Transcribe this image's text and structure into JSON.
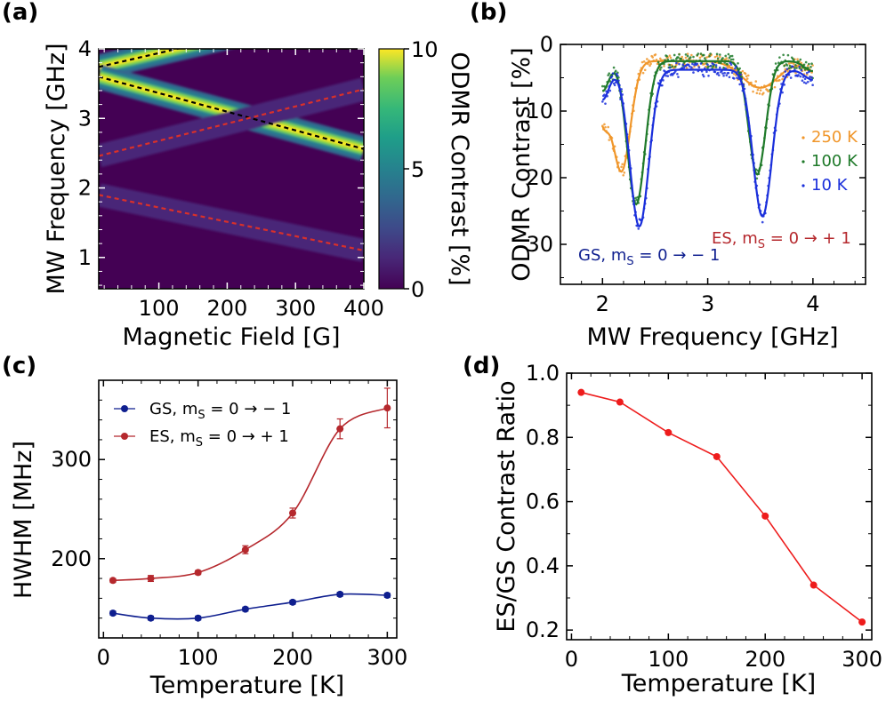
{
  "chart_data": [
    {
      "panel": "(a)",
      "type": "heatmap",
      "xlabel": "Magnetic Field [G]",
      "ylabel": "MW Frequency [GHz]",
      "xlim": [
        12,
        400
      ],
      "ylim": [
        0.55,
        4.0
      ],
      "xticks": [
        100,
        200,
        300,
        400
      ],
      "yticks": [
        1,
        2,
        3,
        4
      ],
      "colorbar": {
        "label": "ODMR Contrast [%]",
        "range": [
          0,
          10
        ],
        "ticks": [
          0,
          5,
          10
        ],
        "colormap": "viridis"
      },
      "branches": [
        {
          "name": "",
          "x": [
            12,
            400
          ],
          "y": [
            3.74,
            4.62
          ],
          "peak": 10,
          "fit_style": "dashed",
          "fit_color": "#000000"
        },
        {
          "name": "",
          "x": [
            12,
            400
          ],
          "y": [
            3.6,
            2.56
          ],
          "peak": 10,
          "fit_style": "dashed",
          "fit_color": "#000000"
        },
        {
          "name": "",
          "x": [
            12,
            400
          ],
          "y": [
            2.46,
            3.42
          ],
          "peak": 2.6,
          "fit_style": "dashed",
          "fit_color": "#d9302a"
        },
        {
          "name": "",
          "x": [
            12,
            400
          ],
          "y": [
            1.9,
            1.1
          ],
          "peak": 2.6,
          "fit_style": "dashed",
          "fit_color": "#d9302a"
        }
      ]
    },
    {
      "panel": "(b)",
      "type": "line",
      "xlabel": "MW Frequency [GHz]",
      "ylabel": "ODMR Contrast [%]",
      "xlim": [
        1.6,
        4.5
      ],
      "ylim": [
        0,
        36
      ],
      "y_inverted": true,
      "xticks": [
        2,
        3,
        4
      ],
      "yticks": [
        0,
        10,
        20,
        30
      ],
      "series": [
        {
          "name": "250 K",
          "color": "#f0962a",
          "base": 2.5,
          "dips": [
            [
              2.18,
              16.5,
              0.085
            ],
            [
              3.5,
              4.0,
              0.17
            ]
          ],
          "edge_min": 8
        },
        {
          "name": "100 K",
          "color": "#1f7a2a",
          "base": 2.5,
          "dips": [
            [
              2.32,
              21.5,
              0.085
            ],
            [
              3.47,
              17.0,
              0.08
            ]
          ],
          "edge_min": 4.5
        },
        {
          "name": "10 K",
          "color": "#1a2fdb",
          "base": 3.8,
          "dips": [
            [
              2.35,
              23.5,
              0.09
            ],
            [
              3.52,
              22.0,
              0.09
            ]
          ],
          "edge_min": 4.5
        }
      ],
      "annotations": [
        {
          "text": "ES, m",
          "sub": "S",
          "rest": " = 0 → + 1",
          "color": "#b5282d"
        },
        {
          "text": "GS, m",
          "sub": "S",
          "rest": " = 0 → − 1",
          "color": "#0f1f8f"
        }
      ]
    },
    {
      "panel": "(c)",
      "type": "line",
      "xlabel": "Temperature [K]",
      "ylabel": "HWHM [MHz]",
      "xlim": [
        -5,
        310
      ],
      "ylim": [
        120,
        380
      ],
      "xticks": [
        0,
        100,
        200,
        300
      ],
      "yticks": [
        200,
        300
      ],
      "series": [
        {
          "name": "GS, m",
          "sub": "S",
          "rest": " = 0 → − 1",
          "color": "#0f1f8f",
          "x": [
            10,
            50,
            100,
            150,
            200,
            250,
            300
          ],
          "y": [
            145,
            140,
            140,
            149,
            156,
            164,
            163
          ],
          "err": [
            2,
            2,
            2,
            2,
            2,
            2,
            2
          ]
        },
        {
          "name": "ES, m",
          "sub": "S",
          "rest": " = 0 → + 1",
          "color": "#b5282d",
          "x": [
            10,
            50,
            100,
            150,
            200,
            250,
            300
          ],
          "y": [
            178,
            180,
            186,
            209,
            246,
            331,
            352
          ],
          "err": [
            2,
            3,
            2,
            4,
            5,
            10,
            20
          ]
        }
      ]
    },
    {
      "panel": "(d)",
      "type": "line",
      "xlabel": "Temperature [K]",
      "ylabel": "ES/GS Contrast Ratio",
      "xlim": [
        -5,
        310
      ],
      "ylim": [
        0.17,
        1.0
      ],
      "xticks": [
        0,
        100,
        200,
        300
      ],
      "yticks": [
        0.2,
        0.4,
        0.6,
        0.8,
        1.0
      ],
      "series": [
        {
          "name": "",
          "color": "#ee1c1c",
          "x": [
            10,
            50,
            100,
            150,
            200,
            250,
            300
          ],
          "y": [
            0.94,
            0.91,
            0.815,
            0.74,
            0.555,
            0.34,
            0.225
          ]
        }
      ]
    }
  ]
}
